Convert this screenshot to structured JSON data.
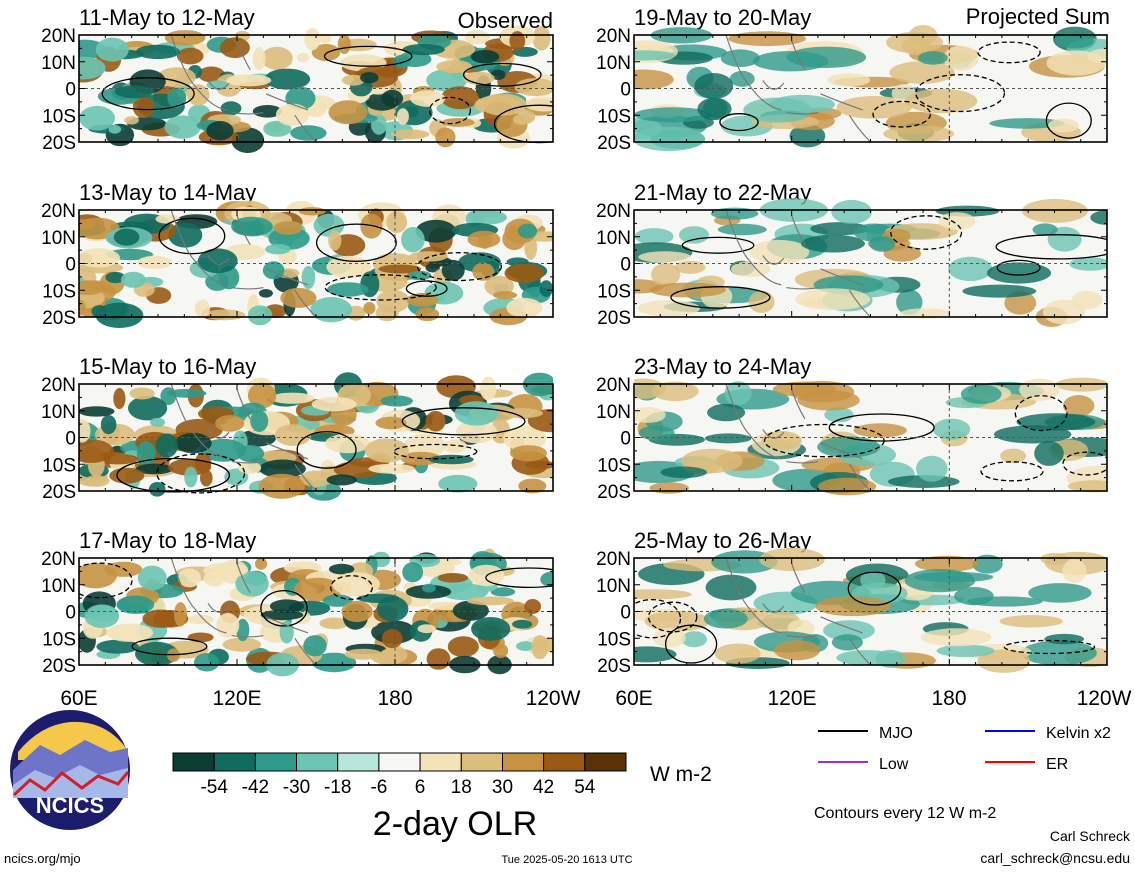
{
  "figure": {
    "observed_label": "Observed",
    "projected_label": "Projected Sum",
    "y_tick_labels": [
      "20N",
      "10N",
      "0",
      "10S",
      "20S"
    ],
    "x_tick_labels": [
      "60E",
      "120E",
      "180",
      "120W"
    ],
    "panels": [
      {
        "id": "p1",
        "column": "observed",
        "title": "11-May to 12-May"
      },
      {
        "id": "p2",
        "column": "observed",
        "title": "13-May to 14-May"
      },
      {
        "id": "p3",
        "column": "observed",
        "title": "15-May to 16-May"
      },
      {
        "id": "p4",
        "column": "observed",
        "title": "17-May to 18-May"
      },
      {
        "id": "p5",
        "column": "projected",
        "title": "19-May to 20-May"
      },
      {
        "id": "p6",
        "column": "projected",
        "title": "21-May to 22-May"
      },
      {
        "id": "p7",
        "column": "projected",
        "title": "23-May to 24-May"
      },
      {
        "id": "p8",
        "column": "projected",
        "title": "25-May to 26-May"
      }
    ]
  },
  "colorbar": {
    "colors": [
      "#0b3d34",
      "#0e6b5e",
      "#2f9a8a",
      "#6cc4b3",
      "#b9e6dc",
      "#f6f6f3",
      "#f4e2b8",
      "#dcbd7c",
      "#c79242",
      "#9a5a14",
      "#5a3206"
    ],
    "tick_labels": [
      "-54",
      "-42",
      "-30",
      "-18",
      "-6",
      "6",
      "18",
      "30",
      "42",
      "54"
    ],
    "units": "W m-2",
    "title": "2-day OLR"
  },
  "legend": {
    "items": [
      {
        "label": "MJO",
        "color": "#000000"
      },
      {
        "label": "Kelvin x2",
        "color": "#0000ff"
      },
      {
        "label": "Low",
        "color": "#9b30d0"
      },
      {
        "label": "ER",
        "color": "#ff0000"
      }
    ],
    "contour_note": "Contours every 12 W m-2"
  },
  "logo": {
    "text": "NCICS"
  },
  "footer": {
    "website": "ncics.org/mjo",
    "timestamp": "Tue 2025-05-20 1613 UTC",
    "author": "Carl Schreck",
    "email": "carl_schreck@ncsu.edu"
  }
}
